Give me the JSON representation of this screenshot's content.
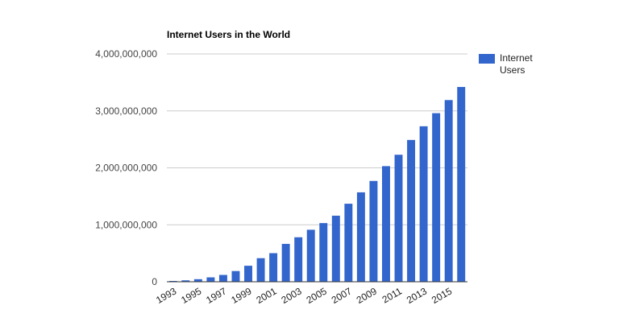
{
  "chart_data": {
    "type": "bar",
    "title": "Internet Users in the World",
    "xlabel": "",
    "ylabel": "",
    "legend_position": "right",
    "color": "#3366cc",
    "grid": true,
    "ylim": [
      0,
      4000000000
    ],
    "y_ticks": [
      0,
      1000000000,
      2000000000,
      3000000000,
      4000000000
    ],
    "y_tick_labels": [
      "0",
      "1,000,000,000",
      "2,000,000,000",
      "3,000,000,000",
      "4,000,000,000"
    ],
    "x_tick_labels": [
      "1993",
      "1995",
      "1997",
      "1999",
      "2001",
      "2003",
      "2005",
      "2007",
      "2009",
      "2011",
      "2013",
      "2015"
    ],
    "categories": [
      "1993",
      "1994",
      "1995",
      "1996",
      "1997",
      "1998",
      "1999",
      "2000",
      "2001",
      "2002",
      "2003",
      "2004",
      "2005",
      "2006",
      "2007",
      "2008",
      "2009",
      "2010",
      "2011",
      "2012",
      "2013",
      "2014",
      "2015",
      "2016"
    ],
    "series": [
      {
        "name": "Internet Users",
        "values": [
          14000000,
          25000000,
          45000000,
          77000000,
          120000000,
          188000000,
          281000000,
          414000000,
          502000000,
          665000000,
          781000000,
          913000000,
          1030000000,
          1160000000,
          1370000000,
          1570000000,
          1770000000,
          2030000000,
          2230000000,
          2490000000,
          2730000000,
          2960000000,
          3190000000,
          3420000000
        ]
      }
    ]
  }
}
